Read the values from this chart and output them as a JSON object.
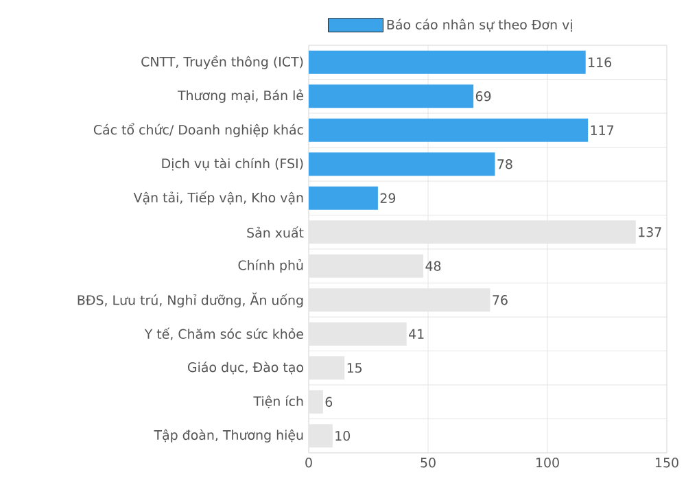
{
  "chart_data": {
    "type": "bar",
    "orientation": "horizontal",
    "categories": [
      "CNTT, Truyền thông (ICT)",
      "Thương mại, Bán lẻ",
      "Các tổ chức/ Doanh nghiệp khác",
      "Dịch vụ tài chính (FSI)",
      "Vận tải, Tiếp vận, Kho vận",
      "Sản xuất",
      "Chính phủ",
      "BĐS, Lưu trú, Nghỉ dưỡng, Ăn uống",
      "Y tế, Chăm sóc sức khỏe",
      "Giáo dục, Đào tạo",
      "Tiện ích",
      "Tập đoàn, Thương hiệu"
    ],
    "series": [
      {
        "name": "Báo cáo nhân sự theo Đơn vị",
        "color": "#3ba3ea",
        "values": [
          116,
          69,
          117,
          78,
          29,
          137,
          48,
          76,
          41,
          15,
          6,
          10
        ],
        "colors": [
          "#3ba3ea",
          "#3ba3ea",
          "#3ba3ea",
          "#3ba3ea",
          "#3ba3ea",
          "#e6e6e6",
          "#e6e6e6",
          "#e6e6e6",
          "#e6e6e6",
          "#e6e6e6",
          "#e6e6e6",
          "#e6e6e6"
        ]
      }
    ],
    "xlim": [
      0,
      150
    ],
    "xticks": [
      0,
      50,
      100,
      150
    ],
    "grid": true,
    "legend": "top",
    "data_labels": true
  }
}
